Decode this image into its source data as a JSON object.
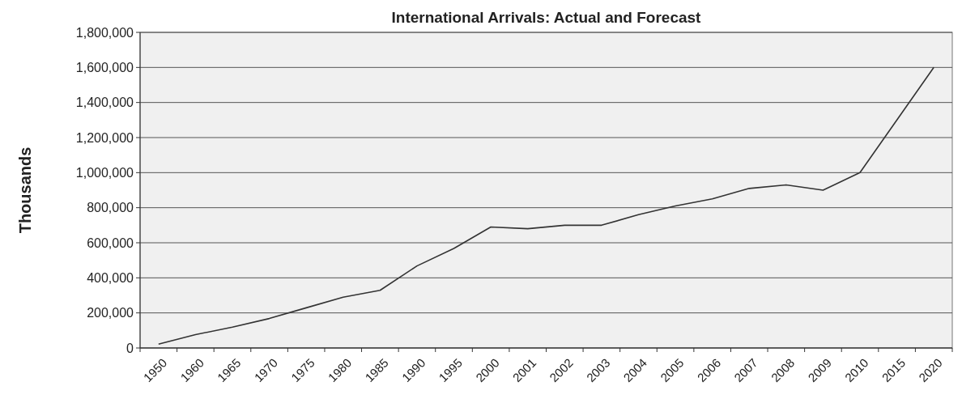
{
  "chart_data": {
    "type": "line",
    "title": "International Arrivals: Actual and Forecast",
    "ylabel": "Thousands",
    "categories": [
      "1950",
      "1960",
      "1965",
      "1970",
      "1975",
      "1980",
      "1985",
      "1990",
      "1995",
      "2000",
      "2001",
      "2002",
      "2003",
      "2004",
      "2005",
      "2006",
      "2007",
      "2008",
      "2009",
      "2010",
      "2015",
      "2020"
    ],
    "series": [
      {
        "color": "#333333",
        "values": [
          22000,
          76000,
          119000,
          168000,
          229000,
          290000,
          329000,
          468000,
          568000,
          690000,
          680000,
          700000,
          700000,
          760000,
          810000,
          850000,
          910000,
          930000,
          900000,
          1000000,
          1300000,
          1600000
        ]
      }
    ],
    "ylim": [
      0,
      1800000
    ],
    "yticks": [
      {
        "value": 0,
        "label": "0"
      },
      {
        "value": 200000,
        "label": "200,000"
      },
      {
        "value": 400000,
        "label": "400,000"
      },
      {
        "value": 600000,
        "label": "600,000"
      },
      {
        "value": 800000,
        "label": "800,000"
      },
      {
        "value": 1000000,
        "label": "1,000,000"
      },
      {
        "value": 1200000,
        "label": "1,200,000"
      },
      {
        "value": 1400000,
        "label": "1,400,000"
      },
      {
        "value": 1600000,
        "label": "1,600,000"
      },
      {
        "value": 1800000,
        "label": "1,800,000"
      }
    ],
    "grid": "y",
    "marker": "none",
    "line_style": "solid"
  }
}
